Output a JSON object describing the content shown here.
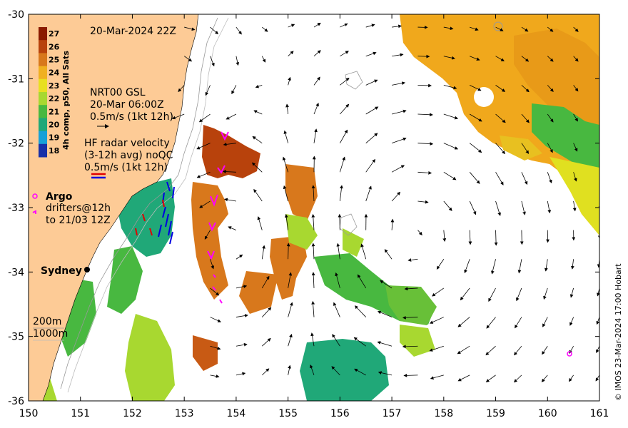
{
  "title_time": "20-Mar-2024 22Z",
  "colorbar": {
    "label": "4h comp, p50, All Sats",
    "ticks": [
      "27",
      "26",
      "25",
      "24",
      "23",
      "22",
      "21",
      "20",
      "19",
      "18"
    ],
    "colors": [
      "#8b1a00",
      "#b8420c",
      "#d8781c",
      "#f0b020",
      "#e8e020",
      "#a8d830",
      "#48b840",
      "#20a878",
      "#18a0d8",
      "#1830a8"
    ]
  },
  "legend": {
    "gsl_line1": "NRT00 GSL",
    "gsl_line2": "20-Mar 06:00Z",
    "gsl_line3": "0.5m/s (1kt 12h)",
    "hf_line1": "HF radar velocity",
    "hf_line2": "(3-12h avg) noQC",
    "hf_line3": "0.5m/s (1kt 12h)",
    "argo_label": "Argo",
    "drifters_line1": "drifters@12h",
    "drifters_line2": "to 21/03 12Z",
    "city": "Sydney",
    "isobath1": "200m",
    "isobath2": "1000m"
  },
  "axes": {
    "x_ticks": [
      "150",
      "151",
      "152",
      "153",
      "154",
      "155",
      "156",
      "157",
      "158",
      "159",
      "160",
      "161"
    ],
    "y_ticks": [
      "-30",
      "-31",
      "-32",
      "-33",
      "-34",
      "-35",
      "-36"
    ],
    "lon_range": [
      150,
      161
    ],
    "lat_range": [
      -36,
      -30
    ]
  },
  "credit": "© IMOS 23-Mar-2024 17:00 Hobart",
  "colors": {
    "land": "#fdcb96",
    "argo": "#ff00ff",
    "hf_red": "#e00000",
    "hf_blue": "#0000e0"
  }
}
